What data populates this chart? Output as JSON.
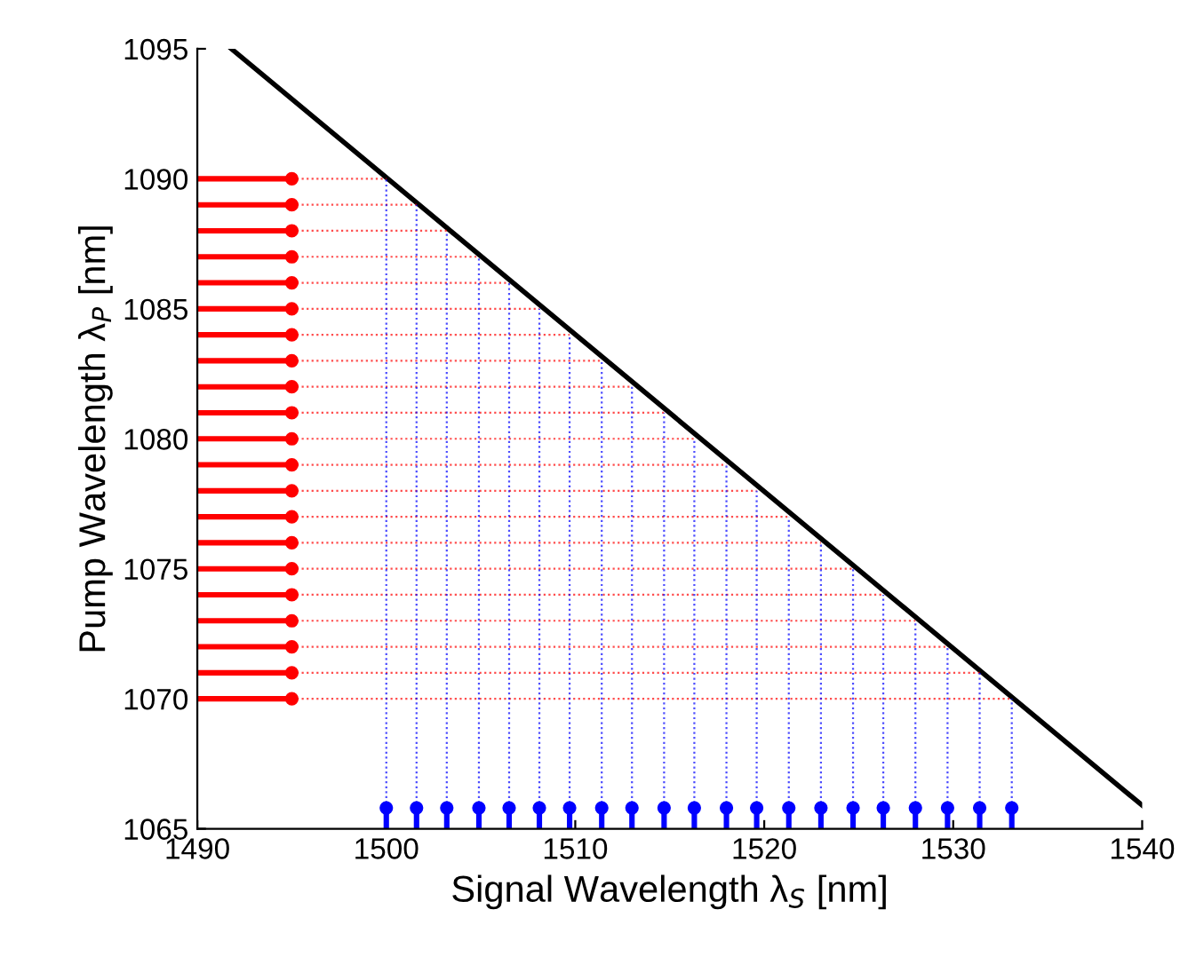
{
  "chart_data": {
    "type": "scatter",
    "xlabel": "Signal Wavelength λ$_{S}$ [nm]",
    "ylabel": "Pump Wavelength λ$_{P}$ [nm]",
    "xlim": [
      1490,
      1540
    ],
    "ylim": [
      1065,
      1095
    ],
    "xticks": [
      1490,
      1500,
      1510,
      1520,
      1530,
      1540
    ],
    "yticks": [
      1065,
      1070,
      1075,
      1080,
      1085,
      1090,
      1095
    ],
    "series": [
      {
        "type": "line",
        "color": "#000000",
        "line_style": "solid",
        "x": [
          1491.8,
          1540
        ],
        "values": [
          1095,
          1065.9
        ]
      },
      {
        "color": "#ff0000",
        "marker": "circle",
        "x": [
          1495,
          1495,
          1495,
          1495,
          1495,
          1495,
          1495,
          1495,
          1495,
          1495,
          1495,
          1495,
          1495,
          1495,
          1495,
          1495,
          1495,
          1495,
          1495,
          1495,
          1495
        ],
        "values": [
          1070,
          1071,
          1072,
          1073,
          1074,
          1075,
          1076,
          1077,
          1078,
          1079,
          1080,
          1081,
          1082,
          1083,
          1084,
          1085,
          1086,
          1087,
          1088,
          1089,
          1090
        ],
        "xerrors": [
          [
            1490,
            1495
          ],
          [
            1490,
            1495
          ],
          [
            1490,
            1495
          ],
          [
            1490,
            1495
          ],
          [
            1490,
            1495
          ],
          [
            1490,
            1495
          ],
          [
            1490,
            1495
          ],
          [
            1490,
            1495
          ],
          [
            1490,
            1495
          ],
          [
            1490,
            1495
          ],
          [
            1490,
            1495
          ],
          [
            1490,
            1495
          ],
          [
            1490,
            1495
          ],
          [
            1490,
            1495
          ],
          [
            1490,
            1495
          ],
          [
            1490,
            1495
          ],
          [
            1490,
            1495
          ],
          [
            1490,
            1495
          ],
          [
            1490,
            1495
          ],
          [
            1490,
            1495
          ],
          [
            1490,
            1495
          ]
        ]
      },
      {
        "color": "#0000ff",
        "marker": "circle",
        "x": [
          1500.0,
          1501.6,
          1503.2,
          1504.9,
          1506.5,
          1508.1,
          1509.7,
          1511.4,
          1513.0,
          1514.7,
          1516.3,
          1518.0,
          1519.6,
          1521.3,
          1523.0,
          1524.7,
          1526.3,
          1528.0,
          1529.7,
          1531.4,
          1533.1
        ],
        "values": [
          1065.8,
          1065.8,
          1065.8,
          1065.8,
          1065.8,
          1065.8,
          1065.8,
          1065.8,
          1065.8,
          1065.8,
          1065.8,
          1065.8,
          1065.8,
          1065.8,
          1065.8,
          1065.8,
          1065.8,
          1065.8,
          1065.8,
          1065.8,
          1065.8
        ],
        "errors": [
          [
            1065,
            1065.8
          ],
          [
            1065,
            1065.8
          ],
          [
            1065,
            1065.8
          ],
          [
            1065,
            1065.8
          ],
          [
            1065,
            1065.8
          ],
          [
            1065,
            1065.8
          ],
          [
            1065,
            1065.8
          ],
          [
            1065,
            1065.8
          ],
          [
            1065,
            1065.8
          ],
          [
            1065,
            1065.8
          ],
          [
            1065,
            1065.8
          ],
          [
            1065,
            1065.8
          ],
          [
            1065,
            1065.8
          ],
          [
            1065,
            1065.8
          ],
          [
            1065,
            1065.8
          ],
          [
            1065,
            1065.8
          ],
          [
            1065,
            1065.8
          ],
          [
            1065,
            1065.8
          ],
          [
            1065,
            1065.8
          ],
          [
            1065,
            1065.8
          ],
          [
            1065,
            1065.8
          ]
        ]
      },
      {
        "type": "line",
        "color": "#ff0000",
        "line_style": "dotted",
        "x": [
          1495,
          1533.1
        ],
        "values": [
          1070,
          1070
        ]
      },
      {
        "type": "line",
        "color": "#ff0000",
        "line_style": "dotted",
        "x": [
          1495,
          1531.4
        ],
        "values": [
          1071,
          1071
        ]
      },
      {
        "type": "line",
        "color": "#ff0000",
        "line_style": "dotted",
        "x": [
          1495,
          1529.7
        ],
        "values": [
          1072,
          1072
        ]
      },
      {
        "type": "line",
        "color": "#ff0000",
        "line_style": "dotted",
        "x": [
          1495,
          1528.0
        ],
        "values": [
          1073,
          1073
        ]
      },
      {
        "type": "line",
        "color": "#ff0000",
        "line_style": "dotted",
        "x": [
          1495,
          1526.3
        ],
        "values": [
          1074,
          1074
        ]
      },
      {
        "type": "line",
        "color": "#ff0000",
        "line_style": "dotted",
        "x": [
          1495,
          1524.7
        ],
        "values": [
          1075,
          1075
        ]
      },
      {
        "type": "line",
        "color": "#ff0000",
        "line_style": "dotted",
        "x": [
          1495,
          1523.0
        ],
        "values": [
          1076,
          1076
        ]
      },
      {
        "type": "line",
        "color": "#ff0000",
        "line_style": "dotted",
        "x": [
          1495,
          1521.3
        ],
        "values": [
          1077,
          1077
        ]
      },
      {
        "type": "line",
        "color": "#ff0000",
        "line_style": "dotted",
        "x": [
          1495,
          1519.6
        ],
        "values": [
          1078,
          1078
        ]
      },
      {
        "type": "line",
        "color": "#ff0000",
        "line_style": "dotted",
        "x": [
          1495,
          1518.0
        ],
        "values": [
          1079,
          1079
        ]
      },
      {
        "type": "line",
        "color": "#ff0000",
        "line_style": "dotted",
        "x": [
          1495,
          1516.3
        ],
        "values": [
          1080,
          1080
        ]
      },
      {
        "type": "line",
        "color": "#ff0000",
        "line_style": "dotted",
        "x": [
          1495,
          1514.7
        ],
        "values": [
          1081,
          1081
        ]
      },
      {
        "type": "line",
        "color": "#ff0000",
        "line_style": "dotted",
        "x": [
          1495,
          1513.0
        ],
        "values": [
          1082,
          1082
        ]
      },
      {
        "type": "line",
        "color": "#ff0000",
        "line_style": "dotted",
        "x": [
          1495,
          1511.4
        ],
        "values": [
          1083,
          1083
        ]
      },
      {
        "type": "line",
        "color": "#ff0000",
        "line_style": "dotted",
        "x": [
          1495,
          1509.7
        ],
        "values": [
          1084,
          1084
        ]
      },
      {
        "type": "line",
        "color": "#ff0000",
        "line_style": "dotted",
        "x": [
          1495,
          1508.1
        ],
        "values": [
          1085,
          1085
        ]
      },
      {
        "type": "line",
        "color": "#ff0000",
        "line_style": "dotted",
        "x": [
          1495,
          1506.5
        ],
        "values": [
          1086,
          1086
        ]
      },
      {
        "type": "line",
        "color": "#ff0000",
        "line_style": "dotted",
        "x": [
          1495,
          1504.9
        ],
        "values": [
          1087,
          1087
        ]
      },
      {
        "type": "line",
        "color": "#ff0000",
        "line_style": "dotted",
        "x": [
          1495,
          1503.2
        ],
        "values": [
          1088,
          1088
        ]
      },
      {
        "type": "line",
        "color": "#ff0000",
        "line_style": "dotted",
        "x": [
          1495,
          1501.6
        ],
        "values": [
          1089,
          1089
        ]
      },
      {
        "type": "line",
        "color": "#ff0000",
        "line_style": "dotted",
        "x": [
          1495,
          1500.0
        ],
        "values": [
          1090,
          1090
        ]
      },
      {
        "type": "line",
        "color": "#0000ff",
        "line_style": "dotted",
        "x": [
          1500.0,
          1500.0
        ],
        "values": [
          1065.8,
          1090
        ]
      },
      {
        "type": "line",
        "color": "#0000ff",
        "line_style": "dotted",
        "x": [
          1501.6,
          1501.6
        ],
        "values": [
          1065.8,
          1089
        ]
      },
      {
        "type": "line",
        "color": "#0000ff",
        "line_style": "dotted",
        "x": [
          1503.2,
          1503.2
        ],
        "values": [
          1065.8,
          1088
        ]
      },
      {
        "type": "line",
        "color": "#0000ff",
        "line_style": "dotted",
        "x": [
          1504.9,
          1504.9
        ],
        "values": [
          1065.8,
          1087
        ]
      },
      {
        "type": "line",
        "color": "#0000ff",
        "line_style": "dotted",
        "x": [
          1506.5,
          1506.5
        ],
        "values": [
          1065.8,
          1086
        ]
      },
      {
        "type": "line",
        "color": "#0000ff",
        "line_style": "dotted",
        "x": [
          1508.1,
          1508.1
        ],
        "values": [
          1065.8,
          1085
        ]
      },
      {
        "type": "line",
        "color": "#0000ff",
        "line_style": "dotted",
        "x": [
          1509.7,
          1509.7
        ],
        "values": [
          1065.8,
          1084
        ]
      },
      {
        "type": "line",
        "color": "#0000ff",
        "line_style": "dotted",
        "x": [
          1511.4,
          1511.4
        ],
        "values": [
          1065.8,
          1083
        ]
      },
      {
        "type": "line",
        "color": "#0000ff",
        "line_style": "dotted",
        "x": [
          1513.0,
          1513.0
        ],
        "values": [
          1065.8,
          1082
        ]
      },
      {
        "type": "line",
        "color": "#0000ff",
        "line_style": "dotted",
        "x": [
          1514.7,
          1514.7
        ],
        "values": [
          1065.8,
          1081
        ]
      },
      {
        "type": "line",
        "color": "#0000ff",
        "line_style": "dotted",
        "x": [
          1516.3,
          1516.3
        ],
        "values": [
          1065.8,
          1080
        ]
      },
      {
        "type": "line",
        "color": "#0000ff",
        "line_style": "dotted",
        "x": [
          1518.0,
          1518.0
        ],
        "values": [
          1065.8,
          1079
        ]
      },
      {
        "type": "line",
        "color": "#0000ff",
        "line_style": "dotted",
        "x": [
          1519.6,
          1519.6
        ],
        "values": [
          1065.8,
          1078
        ]
      },
      {
        "type": "line",
        "color": "#0000ff",
        "line_style": "dotted",
        "x": [
          1521.3,
          1521.3
        ],
        "values": [
          1065.8,
          1077
        ]
      },
      {
        "type": "line",
        "color": "#0000ff",
        "line_style": "dotted",
        "x": [
          1523.0,
          1523.0
        ],
        "values": [
          1065.8,
          1076
        ]
      },
      {
        "type": "line",
        "color": "#0000ff",
        "line_style": "dotted",
        "x": [
          1524.7,
          1524.7
        ],
        "values": [
          1065.8,
          1075
        ]
      },
      {
        "type": "line",
        "color": "#0000ff",
        "line_style": "dotted",
        "x": [
          1526.3,
          1526.3
        ],
        "values": [
          1065.8,
          1074
        ]
      },
      {
        "type": "line",
        "color": "#0000ff",
        "line_style": "dotted",
        "x": [
          1528.0,
          1528.0
        ],
        "values": [
          1065.8,
          1073
        ]
      },
      {
        "type": "line",
        "color": "#0000ff",
        "line_style": "dotted",
        "x": [
          1529.7,
          1529.7
        ],
        "values": [
          1065.8,
          1072
        ]
      },
      {
        "type": "line",
        "color": "#0000ff",
        "line_style": "dotted",
        "x": [
          1531.4,
          1531.4
        ],
        "values": [
          1065.8,
          1071
        ]
      },
      {
        "type": "line",
        "color": "#0000ff",
        "line_style": "dotted",
        "x": [
          1533.1,
          1533.1
        ],
        "values": [
          1065.8,
          1070
        ]
      }
    ]
  }
}
